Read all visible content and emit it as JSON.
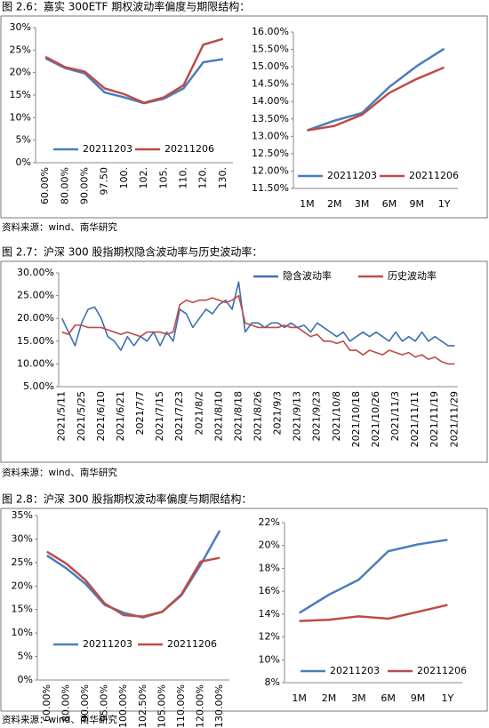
{
  "captions": [
    "图 2.6：嘉实 300ETF 期权波动率偏度与期限结构：",
    "图 2.7：沪深 300 股指期权隐含波动率与历史波动率：",
    "图 2.8：沪深 300 股指期权波动率偏度与期限结构："
  ],
  "sources": [
    "资料来源：wind、南华研究",
    "资料来源：wind、南华研究",
    "资料来源：wind、南华研究"
  ],
  "chart_data": [
    {
      "type": "line",
      "categories": [
        "60.00%",
        "80.00%",
        "90.00%",
        "97.50",
        "100.",
        "102.",
        "105.",
        "110.",
        "120.",
        "130."
      ],
      "series": [
        {
          "name": "20211203",
          "color": "#4a7ebb",
          "values": [
            23.2,
            21,
            19.8,
            15.6,
            14.5,
            13.2,
            14.2,
            16.5,
            22.3,
            23.0
          ]
        },
        {
          "name": "20211206",
          "color": "#be4b48",
          "values": [
            23.5,
            21.2,
            20.2,
            16.5,
            15.2,
            13.3,
            14.5,
            17.2,
            26.2,
            27.5
          ]
        }
      ],
      "ylim": [
        0,
        30
      ],
      "yticks": [
        {
          "value": 0,
          "label": "0%"
        },
        {
          "value": 5,
          "label": "5%"
        },
        {
          "value": 10,
          "label": "10%"
        },
        {
          "value": 15,
          "label": "15%"
        },
        {
          "value": 20,
          "label": "20%"
        },
        {
          "value": 25,
          "label": "25%"
        },
        {
          "value": 30,
          "label": "30%"
        }
      ],
      "grid": false
    },
    {
      "type": "line",
      "categories": [
        "1M",
        "2M",
        "3M",
        "6M",
        "9M",
        "1Y"
      ],
      "series": [
        {
          "name": "20211203",
          "color": "#4a7ebb",
          "values": [
            13.17,
            13.45,
            13.67,
            14.42,
            15.02,
            15.52
          ]
        },
        {
          "name": "20211206",
          "color": "#be4b48",
          "values": [
            13.17,
            13.3,
            13.62,
            14.25,
            14.65,
            14.98
          ]
        }
      ],
      "ylim": [
        11.5,
        16
      ],
      "yticks": [
        {
          "value": 11.5,
          "label": "11.50%"
        },
        {
          "value": 12,
          "label": "12.00%"
        },
        {
          "value": 12.5,
          "label": "12.50%"
        },
        {
          "value": 13,
          "label": "13.00%"
        },
        {
          "value": 13.5,
          "label": "13.50%"
        },
        {
          "value": 14,
          "label": "14.00%"
        },
        {
          "value": 14.5,
          "label": "14.50%"
        },
        {
          "value": 15,
          "label": "15.00%"
        },
        {
          "value": 15.5,
          "label": "15.50%"
        },
        {
          "value": 16,
          "label": "16.00%"
        }
      ],
      "grid": false
    },
    {
      "type": "line",
      "categories": [
        "2021/5/11",
        null,
        null,
        "2021/5/25",
        null,
        null,
        "2021/6/10",
        null,
        null,
        "2021/6/21",
        null,
        null,
        "2021/7/7",
        null,
        null,
        "2021/7/15",
        null,
        null,
        "2021/7/23",
        null,
        null,
        "2021/8/2",
        null,
        null,
        "2021/8/10",
        null,
        null,
        "2021/8/18",
        null,
        null,
        "2021/8/26",
        null,
        null,
        "2021/9/3",
        null,
        null,
        "2021/9/13",
        null,
        null,
        "2021/9/23",
        null,
        null,
        "2021/10/8",
        null,
        null,
        "2021/10/18",
        null,
        null,
        "2021/10/26",
        null,
        null,
        "2021/11/3",
        null,
        null,
        "2021/11/11",
        null,
        null,
        "2021/11/19",
        null,
        null,
        "2021/11/29"
      ],
      "series": [
        {
          "name": "隐含波动率",
          "color": "#3d6fb0",
          "values": [
            20,
            17,
            14,
            19,
            22,
            22.5,
            20,
            16,
            15,
            13,
            16,
            14,
            16,
            15,
            17,
            14,
            17,
            15,
            22,
            21,
            18,
            20,
            22,
            21,
            23,
            24,
            22,
            28,
            17,
            19,
            19,
            18,
            19,
            19,
            18,
            19,
            18,
            18.5,
            17,
            19,
            18,
            17,
            16,
            17,
            15,
            16,
            17,
            16,
            17,
            16,
            15,
            17,
            15,
            16,
            15,
            17,
            15,
            16,
            15,
            14,
            14
          ]
        },
        {
          "name": "历史波动率",
          "color": "#be4b48",
          "values": [
            17,
            16.5,
            18.5,
            18.5,
            18,
            18,
            18,
            17.5,
            17,
            16.5,
            17,
            16.5,
            16,
            17,
            17,
            17,
            16.5,
            17,
            23,
            24,
            23.5,
            24,
            24,
            24.5,
            24,
            23.5,
            24,
            25,
            19,
            18.5,
            18,
            18,
            18,
            18,
            18.5,
            18,
            18,
            17,
            16,
            16.5,
            15,
            15,
            14.5,
            15,
            13,
            13,
            12,
            13,
            12.5,
            12,
            13,
            12.5,
            12,
            12.5,
            11.5,
            12,
            11,
            11.5,
            10.5,
            10,
            10
          ]
        }
      ],
      "ylim": [
        5,
        30
      ],
      "yticks": [
        {
          "value": 5,
          "label": "5.00%"
        },
        {
          "value": 10,
          "label": "10.00%"
        },
        {
          "value": 15,
          "label": "15.00%"
        },
        {
          "value": 20,
          "label": "20.00%"
        },
        {
          "value": 25,
          "label": "25.00%"
        },
        {
          "value": 30,
          "label": "30.00%"
        }
      ],
      "grid": false
    },
    {
      "type": "line",
      "categories": [
        "60.00%",
        "80.00%",
        "90.00%",
        "95.00%",
        "100.00%",
        "102.50%",
        "105.00%",
        "110.00%",
        "120.00%",
        "130.00%"
      ],
      "series": [
        {
          "name": "20211203",
          "color": "#4a7ebb",
          "values": [
            26.5,
            23.8,
            20.5,
            16,
            14.3,
            13.3,
            14.5,
            18,
            24.5,
            31.8
          ]
        },
        {
          "name": "20211206",
          "color": "#be4b48",
          "values": [
            27.3,
            24.8,
            21.3,
            16.3,
            13.8,
            13.5,
            14.5,
            18.2,
            25.2,
            26
          ]
        }
      ],
      "ylim": [
        0,
        35
      ],
      "yticks": [
        {
          "value": 0,
          "label": "0%"
        },
        {
          "value": 5,
          "label": "5%"
        },
        {
          "value": 10,
          "label": "10%"
        },
        {
          "value": 15,
          "label": "15%"
        },
        {
          "value": 20,
          "label": "20%"
        },
        {
          "value": 25,
          "label": "25%"
        },
        {
          "value": 30,
          "label": "30%"
        },
        {
          "value": 35,
          "label": "35%"
        }
      ],
      "grid": false
    },
    {
      "type": "line",
      "categories": [
        "1M",
        "2M",
        "3M",
        "6M",
        "9M",
        "1Y"
      ],
      "series": [
        {
          "name": "20211203",
          "color": "#4a7ebb",
          "values": [
            14.1,
            15.7,
            17,
            19.5,
            20.1,
            20.5
          ]
        },
        {
          "name": "20211206",
          "color": "#be4b48",
          "values": [
            13.4,
            13.5,
            13.8,
            13.6,
            14.2,
            14.8
          ]
        }
      ],
      "ylim": [
        8,
        22
      ],
      "yticks": [
        {
          "value": 8,
          "label": "8%"
        },
        {
          "value": 10,
          "label": "10%"
        },
        {
          "value": 12,
          "label": "12%"
        },
        {
          "value": 14,
          "label": "14%"
        },
        {
          "value": 16,
          "label": "16%"
        },
        {
          "value": 18,
          "label": "18%"
        },
        {
          "value": 20,
          "label": "20%"
        },
        {
          "value": 22,
          "label": "22%"
        }
      ],
      "grid": false
    }
  ]
}
